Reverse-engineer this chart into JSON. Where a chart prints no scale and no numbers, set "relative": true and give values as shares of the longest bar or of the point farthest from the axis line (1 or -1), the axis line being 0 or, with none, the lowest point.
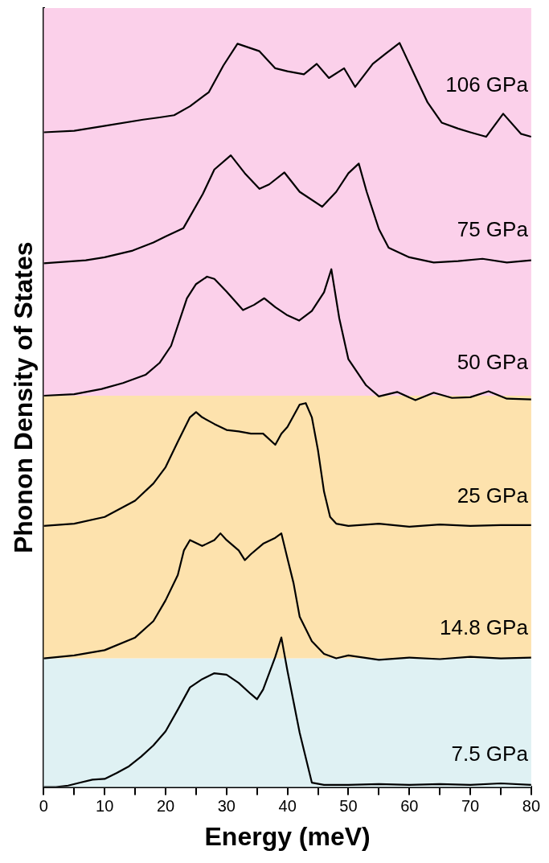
{
  "chart_data": {
    "type": "line",
    "relative": true,
    "xlabel": "Energy (meV)",
    "ylabel": "Phonon Density of States",
    "xlim": [
      0,
      80
    ],
    "xticks": [
      0,
      {
        "value": 5,
        "label": null
      },
      10,
      {
        "value": 15,
        "label": null
      },
      20,
      {
        "value": 25,
        "label": null
      },
      30,
      {
        "value": 35,
        "label": null
      },
      40,
      {
        "value": 45,
        "label": null
      },
      50,
      {
        "value": 55,
        "label": null
      },
      60,
      {
        "value": 65,
        "label": null
      },
      70,
      {
        "value": 75,
        "label": null
      },
      80
    ],
    "grid": false,
    "legend": false,
    "marker": "none",
    "line_style": "solid",
    "bands": [
      {
        "axis": "y",
        "from": 0,
        "to": 0.173,
        "color": "#dff1f3"
      },
      {
        "axis": "y",
        "from": 0.173,
        "to": 0.526,
        "color": "#fde2ad"
      },
      {
        "axis": "y",
        "from": 0.526,
        "to": 1.047,
        "color": "#fbd0ea"
      }
    ],
    "series": [
      {
        "name": "7.5 GPa",
        "color": "#000000",
        "x": [
          0,
          2,
          4,
          6,
          8,
          10,
          12,
          14,
          16,
          18,
          20,
          22,
          24,
          26,
          28,
          30,
          32,
          34,
          35,
          36,
          38,
          39,
          40,
          42,
          44,
          46,
          50,
          55,
          60,
          65,
          70,
          75,
          80
        ],
        "values": [
          0,
          0,
          0.002,
          0.006,
          0.01,
          0.011,
          0.019,
          0.028,
          0.041,
          0.056,
          0.075,
          0.104,
          0.134,
          0.145,
          0.153,
          0.151,
          0.14,
          0.125,
          0.118,
          0.131,
          0.175,
          0.201,
          0.156,
          0.073,
          0.006,
          0.003,
          0.003,
          0.004,
          0.003,
          0.004,
          0.003,
          0.005,
          0.003
        ]
      },
      {
        "name": "14.8 GPa",
        "color": "#000000",
        "x": [
          0,
          5,
          10,
          15,
          18,
          20,
          22,
          23,
          24,
          26,
          28,
          29,
          30,
          32,
          33,
          34,
          36,
          38,
          39,
          40,
          41,
          42,
          44,
          46,
          48,
          50,
          55,
          60,
          65,
          70,
          75,
          80
        ],
        "values": [
          0.173,
          0.177,
          0.184,
          0.201,
          0.223,
          0.251,
          0.285,
          0.318,
          0.332,
          0.324,
          0.332,
          0.341,
          0.332,
          0.318,
          0.305,
          0.313,
          0.327,
          0.335,
          0.341,
          0.307,
          0.274,
          0.229,
          0.196,
          0.179,
          0.173,
          0.177,
          0.171,
          0.174,
          0.172,
          0.175,
          0.173,
          0.174
        ]
      },
      {
        "name": "25 GPa",
        "color": "#000000",
        "x": [
          0,
          5,
          10,
          15,
          18,
          20,
          22,
          24,
          25,
          26,
          28,
          30,
          32,
          34,
          36,
          38,
          39,
          40,
          42,
          43,
          44,
          45,
          46,
          47,
          48,
          50,
          55,
          60,
          65,
          70,
          75,
          80
        ],
        "values": [
          0.351,
          0.354,
          0.363,
          0.385,
          0.408,
          0.43,
          0.464,
          0.497,
          0.504,
          0.497,
          0.488,
          0.48,
          0.478,
          0.475,
          0.475,
          0.46,
          0.475,
          0.484,
          0.514,
          0.516,
          0.497,
          0.453,
          0.397,
          0.363,
          0.354,
          0.351,
          0.354,
          0.35,
          0.353,
          0.351,
          0.352,
          0.352
        ]
      },
      {
        "name": "50 GPa",
        "color": "#000000",
        "x": [
          0,
          5,
          9.5,
          13,
          16.7,
          19,
          20.9,
          23.5,
          25,
          26.8,
          28,
          30,
          32.7,
          34.5,
          36.2,
          38,
          40,
          41.9,
          44,
          46,
          47.2,
          48.5,
          50,
          52.9,
          55,
          58,
          61,
          64,
          67,
          70,
          73,
          76,
          80
        ],
        "values": [
          0.526,
          0.528,
          0.535,
          0.543,
          0.554,
          0.57,
          0.593,
          0.657,
          0.676,
          0.686,
          0.683,
          0.666,
          0.641,
          0.648,
          0.657,
          0.645,
          0.634,
          0.627,
          0.64,
          0.665,
          0.696,
          0.63,
          0.575,
          0.54,
          0.525,
          0.531,
          0.52,
          0.53,
          0.523,
          0.524,
          0.532,
          0.522,
          0.521
        ]
      },
      {
        "name": "75 GPa",
        "color": "#000000",
        "x": [
          0,
          6.9,
          10,
          14.6,
          18,
          20,
          22.9,
          26.1,
          28,
          30.7,
          33,
          35.4,
          37,
          39.5,
          42,
          45.7,
          48,
          50,
          51.7,
          53,
          55,
          56.6,
          60,
          64,
          68,
          72,
          76,
          80
        ],
        "values": [
          0.704,
          0.708,
          0.712,
          0.721,
          0.732,
          0.74,
          0.751,
          0.797,
          0.83,
          0.849,
          0.825,
          0.804,
          0.81,
          0.826,
          0.8,
          0.78,
          0.8,
          0.825,
          0.838,
          0.8,
          0.75,
          0.725,
          0.712,
          0.705,
          0.707,
          0.71,
          0.705,
          0.708
        ]
      },
      {
        "name": "106 GPa",
        "color": "#000000",
        "x": [
          0,
          5,
          9.5,
          16.3,
          19,
          21.4,
          24,
          27.1,
          29.5,
          31.8,
          35.4,
          38,
          40,
          42.7,
          44.8,
          46.8,
          49.3,
          51.1,
          54,
          56,
          58.4,
          61.2,
          63,
          65.3,
          68,
          70,
          72.6,
          75.4,
          78.3,
          80
        ],
        "values": [
          0.88,
          0.882,
          0.888,
          0.897,
          0.9,
          0.903,
          0.915,
          0.934,
          0.97,
          0.999,
          0.989,
          0.966,
          0.962,
          0.958,
          0.972,
          0.953,
          0.966,
          0.941,
          0.972,
          0.985,
          1.0,
          0.951,
          0.92,
          0.893,
          0.885,
          0.88,
          0.874,
          0.905,
          0.878,
          0.874
        ]
      }
    ]
  }
}
